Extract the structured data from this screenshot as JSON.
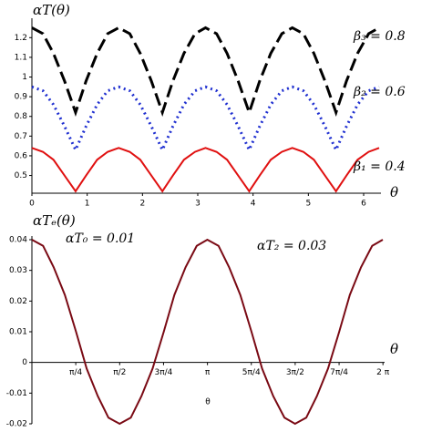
{
  "chart_data": [
    {
      "type": "line",
      "y_label": "αT(θ)",
      "x_label": "θ",
      "x": [
        0,
        0.2,
        0.39,
        0.59,
        0.79,
        0.98,
        1.18,
        1.37,
        1.57,
        1.77,
        1.96,
        2.16,
        2.36,
        2.55,
        2.75,
        2.95,
        3.14,
        3.34,
        3.53,
        3.73,
        3.93,
        4.12,
        4.32,
        4.52,
        4.71,
        4.91,
        5.1,
        5.3,
        5.5,
        5.69,
        5.89,
        6.09,
        6.28
      ],
      "series": [
        {
          "name": "β₃ = 0.8",
          "color": "#000000",
          "dash": "dashed",
          "values": [
            1.25,
            1.22,
            1.12,
            0.98,
            0.82,
            0.98,
            1.12,
            1.22,
            1.25,
            1.22,
            1.12,
            0.98,
            0.82,
            0.98,
            1.12,
            1.22,
            1.25,
            1.22,
            1.12,
            0.98,
            0.82,
            0.98,
            1.12,
            1.22,
            1.25,
            1.22,
            1.12,
            0.98,
            0.82,
            0.98,
            1.12,
            1.22,
            1.25
          ]
        },
        {
          "name": "β₂ = 0.6",
          "color": "#1f2fd0",
          "dash": "dotted",
          "values": [
            0.95,
            0.93,
            0.86,
            0.75,
            0.63,
            0.75,
            0.86,
            0.93,
            0.95,
            0.93,
            0.86,
            0.75,
            0.63,
            0.75,
            0.86,
            0.93,
            0.95,
            0.93,
            0.86,
            0.75,
            0.63,
            0.75,
            0.86,
            0.93,
            0.95,
            0.93,
            0.86,
            0.75,
            0.63,
            0.75,
            0.86,
            0.93,
            0.95
          ]
        },
        {
          "name": "β₁ = 0.4",
          "color": "#e01010",
          "dash": "solid",
          "values": [
            0.64,
            0.62,
            0.58,
            0.5,
            0.42,
            0.5,
            0.58,
            0.62,
            0.64,
            0.62,
            0.58,
            0.5,
            0.42,
            0.5,
            0.58,
            0.62,
            0.64,
            0.62,
            0.58,
            0.5,
            0.42,
            0.5,
            0.58,
            0.62,
            0.64,
            0.62,
            0.58,
            0.5,
            0.42,
            0.5,
            0.58,
            0.62,
            0.64
          ]
        }
      ],
      "xlim": [
        0,
        6.28
      ],
      "ylim": [
        0.41,
        1.28
      ],
      "xticks": [
        0,
        1,
        2,
        3,
        4,
        5,
        6
      ],
      "yticks": [
        0.5,
        0.6,
        0.7,
        0.8,
        0.9,
        1,
        1.1,
        1.2
      ]
    },
    {
      "type": "line",
      "y_label": "αTₑ(θ)",
      "x_label": "θ",
      "x_sublabel": "θ",
      "annotations": [
        "αT₀ = 0.01",
        "αT₂ = 0.03"
      ],
      "x": [
        0,
        0.2,
        0.39,
        0.59,
        0.79,
        0.98,
        1.18,
        1.37,
        1.57,
        1.77,
        1.96,
        2.16,
        2.36,
        2.55,
        2.75,
        2.95,
        3.14,
        3.34,
        3.53,
        3.73,
        3.93,
        4.12,
        4.32,
        4.52,
        4.71,
        4.91,
        5.1,
        5.3,
        5.5,
        5.69,
        5.89,
        6.09,
        6.28
      ],
      "series": [
        {
          "name": null,
          "color": "#7a0a14",
          "dash": "solid",
          "values": [
            0.04,
            0.038,
            0.031,
            0.022,
            0.01,
            -0.002,
            -0.011,
            -0.018,
            -0.02,
            -0.018,
            -0.011,
            -0.002,
            0.01,
            0.022,
            0.031,
            0.038,
            0.04,
            0.038,
            0.031,
            0.022,
            0.01,
            -0.002,
            -0.011,
            -0.018,
            -0.02,
            -0.018,
            -0.011,
            -0.002,
            0.01,
            0.022,
            0.031,
            0.038,
            0.04
          ]
        }
      ],
      "xlim": [
        0,
        6.28
      ],
      "ylim": [
        -0.02,
        0.04
      ],
      "xticks": [
        {
          "value": 0.785,
          "label": "π/4"
        },
        {
          "value": 1.571,
          "label": "π/2"
        },
        {
          "value": 2.356,
          "label": "3π/4"
        },
        {
          "value": 3.142,
          "label": "π"
        },
        {
          "value": 3.927,
          "label": "5π/4"
        },
        {
          "value": 4.712,
          "label": "3π/2"
        },
        {
          "value": 5.498,
          "label": "7π/4"
        },
        {
          "value": 6.283,
          "label": "2 π"
        }
      ],
      "yticks": [
        -0.02,
        -0.01,
        0,
        0.01,
        0.02,
        0.03,
        0.04
      ]
    }
  ]
}
